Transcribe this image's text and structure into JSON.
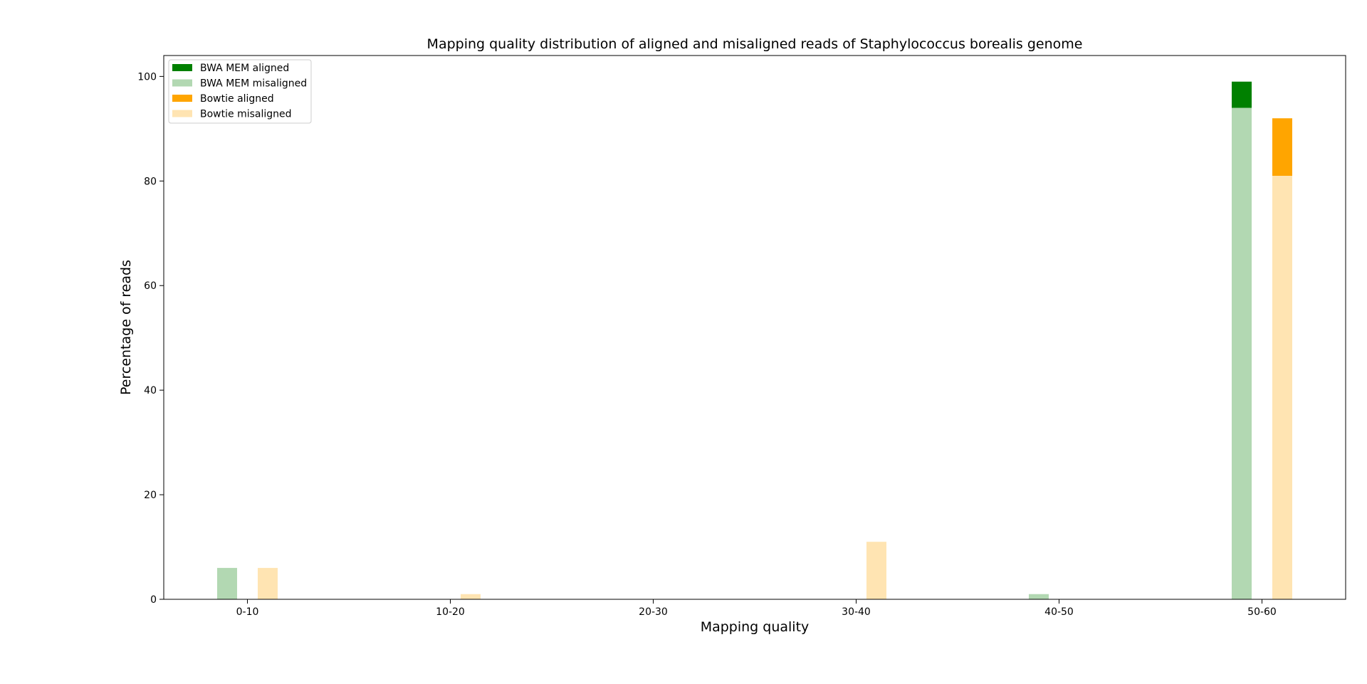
{
  "chart_data": {
    "type": "bar",
    "title": "Mapping quality distribution of aligned and misaligned reads of Staphylococcus borealis genome",
    "xlabel": "Mapping quality",
    "ylabel": "Percentage of reads",
    "categories": [
      "0-10",
      "10-20",
      "20-30",
      "30-40",
      "40-50",
      "50-60"
    ],
    "ylim": [
      0,
      104
    ],
    "yticks": [
      0,
      20,
      40,
      60,
      80,
      100
    ],
    "grid": false,
    "legend_position": "top-left",
    "stacked": true,
    "series": [
      {
        "name": "BWA MEM aligned",
        "group": "BWA MEM",
        "color": "#008000",
        "values": [
          0,
          0,
          0,
          0,
          0,
          99
        ]
      },
      {
        "name": "BWA MEM misaligned",
        "group": "BWA MEM",
        "color": "#b2d8b2",
        "values": [
          6,
          0,
          0,
          0,
          1,
          94
        ]
      },
      {
        "name": "Bowtie aligned",
        "group": "Bowtie",
        "color": "#ffa500",
        "values": [
          0,
          0,
          0,
          7,
          0,
          92
        ]
      },
      {
        "name": "Bowtie misaligned",
        "group": "Bowtie",
        "color": "#ffe4b2",
        "values": [
          6,
          1,
          0,
          11,
          0,
          81
        ]
      }
    ]
  }
}
